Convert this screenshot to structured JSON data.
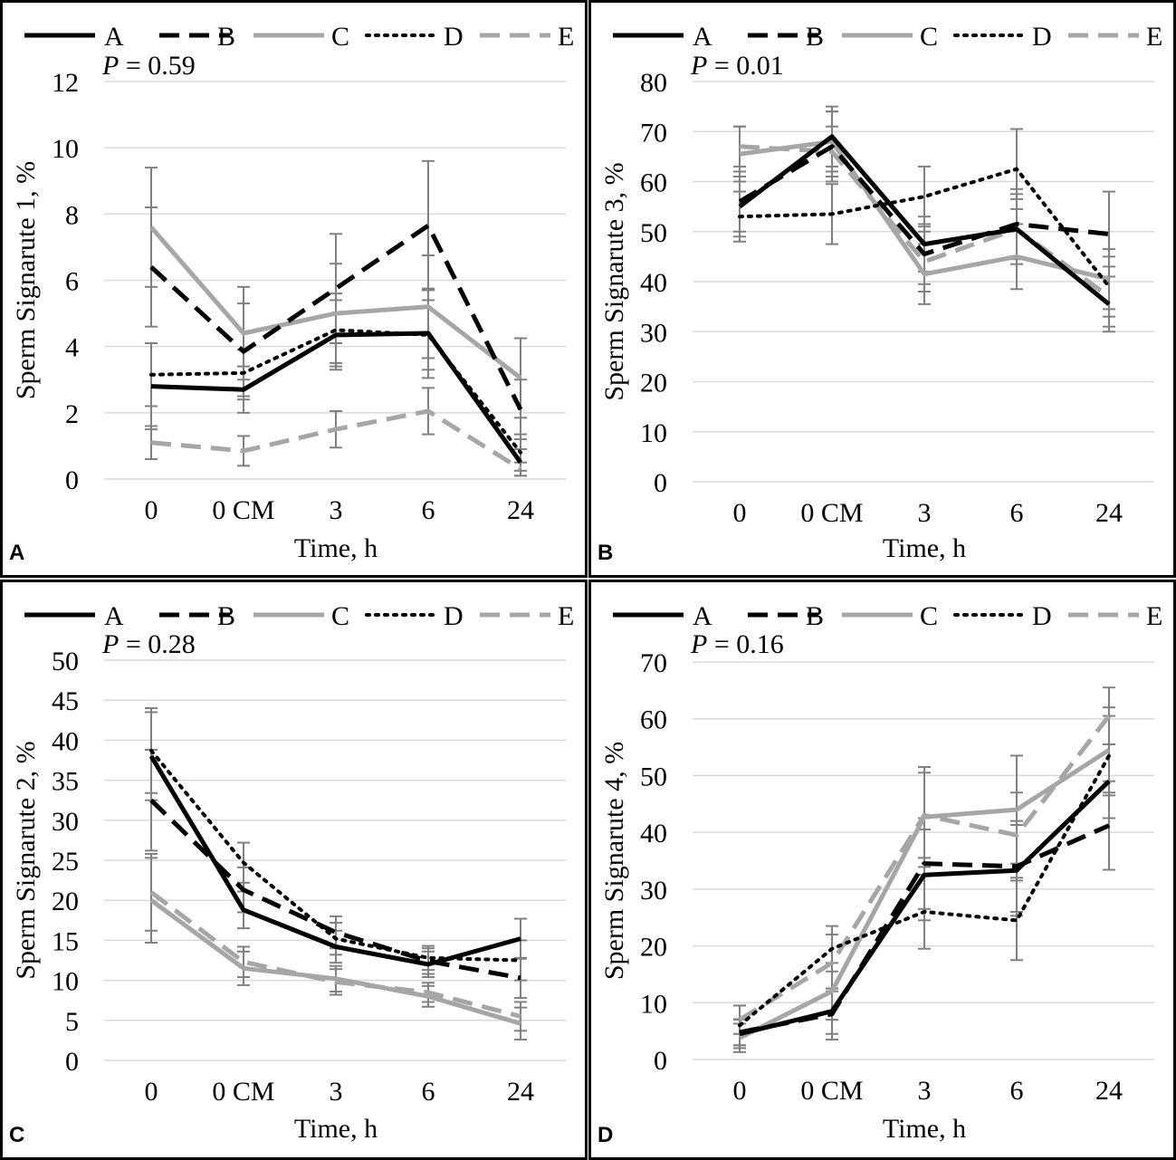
{
  "chart_data": [
    {
      "type": "line",
      "panel": "A",
      "ylabel": "Sperm Signarute 1, %",
      "xlabel": "Time, h",
      "pvalue": "P = 0.59",
      "ylim": [
        0,
        12
      ],
      "yticks": [
        0,
        2,
        4,
        6,
        8,
        10,
        12
      ],
      "categories": [
        "0",
        "0 CM",
        "3",
        "6",
        "24"
      ],
      "series": [
        {
          "name": "A",
          "values": [
            2.8,
            2.7,
            4.35,
            4.4,
            0.5
          ],
          "errors": [
            1.3,
            0.7,
            1.05,
            1.35,
            0.4
          ]
        },
        {
          "name": "B",
          "values": [
            6.4,
            3.85,
            5.75,
            7.65,
            2.1
          ],
          "errors": [
            1.8,
            1.45,
            1.65,
            1.95,
            0.9
          ]
        },
        {
          "name": "C",
          "values": [
            7.6,
            4.4,
            5.0,
            5.2,
            3.05
          ],
          "errors": [
            1.8,
            1.4,
            1.5,
            1.55,
            1.2
          ]
        },
        {
          "name": "D",
          "values": [
            3.15,
            3.2,
            4.5,
            4.35,
            0.8
          ],
          "errors": [
            0.95,
            0.7,
            1.1,
            1.05,
            0.55
          ]
        },
        {
          "name": "E",
          "values": [
            1.1,
            0.85,
            1.5,
            2.05,
            0.3
          ],
          "errors": [
            0.5,
            0.45,
            0.55,
            0.7,
            0.2
          ]
        }
      ]
    },
    {
      "type": "line",
      "panel": "B",
      "ylabel": "Sperm Signarute 3, %",
      "xlabel": "Time, h",
      "pvalue": "P = 0.01",
      "ylim": [
        0,
        80
      ],
      "yticks": [
        0,
        10,
        20,
        30,
        40,
        50,
        60,
        70,
        80
      ],
      "categories": [
        "0",
        "0 CM",
        "3",
        "6",
        "24"
      ],
      "series": [
        {
          "name": "A",
          "values": [
            55,
            69,
            47.5,
            50.5,
            35.5
          ],
          "errors": [
            6,
            6,
            5.5,
            6,
            5.5
          ]
        },
        {
          "name": "B",
          "values": [
            56,
            67,
            45.5,
            51.5,
            49.5
          ],
          "errors": [
            6,
            7,
            6,
            7,
            8.5
          ]
        },
        {
          "name": "C",
          "values": [
            65.5,
            68,
            41.5,
            45,
            40.5
          ],
          "errors": [
            5.5,
            6,
            6,
            6.5,
            6
          ]
        },
        {
          "name": "D",
          "values": [
            53,
            53.5,
            57,
            62.5,
            39
          ],
          "errors": [
            5,
            6,
            6,
            8,
            6
          ]
        },
        {
          "name": "E",
          "values": [
            67,
            66,
            44,
            50.5,
            37
          ],
          "errors": [
            4,
            5,
            6,
            7,
            6
          ]
        }
      ]
    },
    {
      "type": "line",
      "panel": "C",
      "ylabel": "Sperm Signarute 2, %",
      "xlabel": "Time, h",
      "pvalue": "P = 0.28",
      "ylim": [
        0,
        50
      ],
      "yticks": [
        0,
        5,
        10,
        15,
        20,
        25,
        30,
        35,
        40,
        45,
        50
      ],
      "categories": [
        "0",
        "0 CM",
        "3",
        "6",
        "24"
      ],
      "series": [
        {
          "name": "A",
          "values": [
            38,
            18.8,
            14.2,
            12,
            15.2
          ],
          "errors": [
            5.5,
            2.3,
            2.0,
            1.6,
            2.5
          ]
        },
        {
          "name": "B",
          "values": [
            32.5,
            21.3,
            16,
            12.4,
            10.3
          ],
          "errors": [
            6.3,
            2.8,
            2.0,
            1.6,
            2.5
          ]
        },
        {
          "name": "C",
          "values": [
            20,
            11.5,
            10.2,
            8,
            4.6
          ],
          "errors": [
            5.3,
            2.1,
            1.6,
            1.3,
            2.0
          ]
        },
        {
          "name": "D",
          "values": [
            38.7,
            24.7,
            15.2,
            12.8,
            12.5
          ],
          "errors": [
            5.3,
            2.5,
            2.0,
            1.5,
            2.5
          ]
        },
        {
          "name": "E",
          "values": [
            21,
            12.3,
            9.8,
            8.5,
            5.5
          ],
          "errors": [
            4.8,
            1.9,
            1.6,
            1.2,
            1.8
          ]
        }
      ]
    },
    {
      "type": "line",
      "panel": "D",
      "ylabel": "Sperm Signarute 4, %",
      "xlabel": "Time, h",
      "pvalue": "P = 0.16",
      "ylim": [
        0,
        70
      ],
      "yticks": [
        0,
        10,
        20,
        30,
        40,
        50,
        60,
        70
      ],
      "categories": [
        "0",
        "0 CM",
        "3",
        "6",
        "24"
      ],
      "series": [
        {
          "name": "A",
          "values": [
            4.5,
            8.5,
            32.5,
            33.3,
            49
          ],
          "errors": [
            2.5,
            4,
            8,
            8,
            6.5
          ]
        },
        {
          "name": "B",
          "values": [
            4.8,
            8,
            34.5,
            34,
            41.2
          ],
          "errors": [
            2.3,
            4.5,
            8,
            8,
            7.8
          ]
        },
        {
          "name": "C",
          "values": [
            3.8,
            12,
            42.7,
            44,
            54.5
          ],
          "errors": [
            2.5,
            5,
            8.8,
            9.5,
            7.5
          ]
        },
        {
          "name": "D",
          "values": [
            6,
            19.5,
            26,
            24.5,
            53.5
          ],
          "errors": [
            3.5,
            4,
            6.5,
            7,
            7
          ]
        },
        {
          "name": "E",
          "values": [
            7,
            17,
            43,
            39.5,
            60.5
          ],
          "errors": [
            2.5,
            5,
            7.5,
            7.5,
            5
          ]
        }
      ]
    }
  ],
  "legend": {
    "A": {
      "color": "#000000",
      "dash": "none"
    },
    "B": {
      "color": "#000000",
      "dash": "dashed"
    },
    "C": {
      "color": "#a6a6a6",
      "dash": "none"
    },
    "D": {
      "color": "#000000",
      "dash": "dotted"
    },
    "E": {
      "color": "#a6a6a6",
      "dash": "dashed"
    }
  }
}
